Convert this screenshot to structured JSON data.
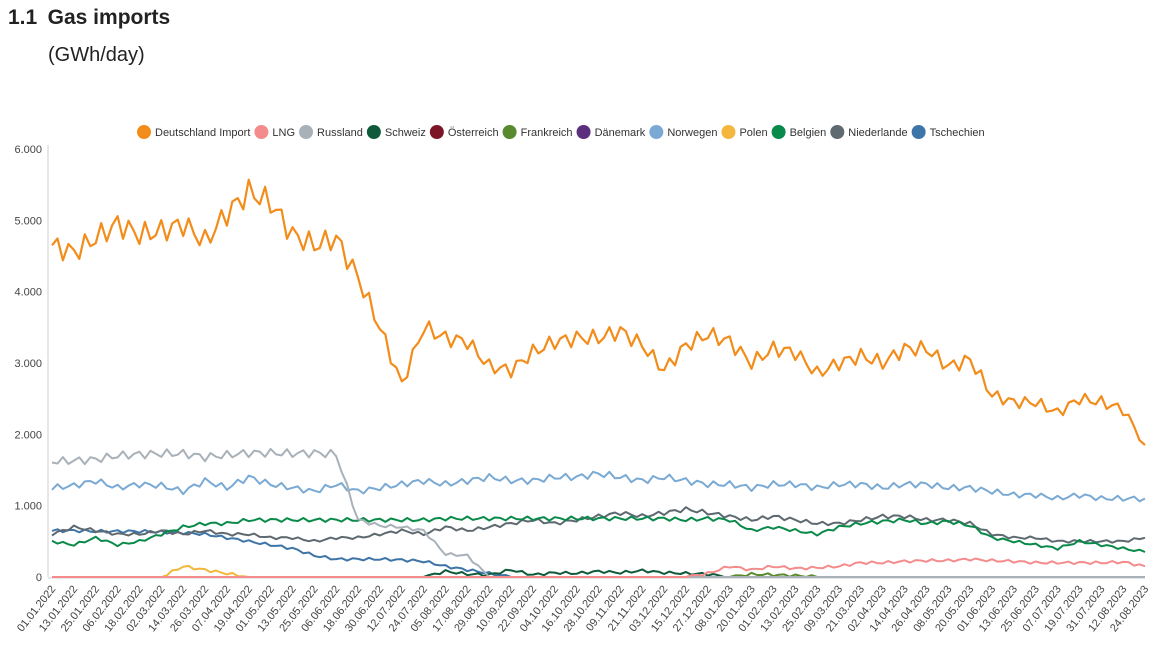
{
  "header": {
    "number": "1.1",
    "title": "Gas imports",
    "unit": "(GWh/day)"
  },
  "chart_data": {
    "type": "line",
    "title": "Gas imports",
    "ylabel": "(GWh/day)",
    "ylim": [
      0,
      6000
    ],
    "y_ticks": [
      "0",
      "1.000",
      "2.000",
      "3.000",
      "4.000",
      "5.000",
      "6.000"
    ],
    "y_tick_values": [
      0,
      1000,
      2000,
      3000,
      4000,
      5000,
      6000
    ],
    "x_tick_labels": [
      "01.01.2022",
      "13.01.2022",
      "25.01.2022",
      "06.02.2022",
      "18.02.2022",
      "02.03.2022",
      "14.03.2022",
      "26.03.2022",
      "07.04.2022",
      "19.04.2022",
      "01.05.2022",
      "13.05.2022",
      "25.05.2022",
      "06.06.2022",
      "18.06.2022",
      "30.06.2022",
      "12.07.2022",
      "24.07.2022",
      "05.08.2022",
      "17.08.2022",
      "29.08.2022",
      "10.09.2022",
      "22.09.2022",
      "04.10.2022",
      "16.10.2022",
      "28.10.2022",
      "09.11.2022",
      "21.11.2022",
      "03.12.2022",
      "15.12.2022",
      "27.12.2022",
      "08.01.2023",
      "20.01.2023",
      "01.02.2023",
      "13.02.2023",
      "25.02.2023",
      "09.03.2023",
      "21.03.2023",
      "02.04.2023",
      "14.04.2023",
      "26.04.2023",
      "08.05.2023",
      "20.05.2023",
      "01.06.2023",
      "13.06.2023",
      "25.06.2023",
      "07.07.2023",
      "19.07.2023",
      "31.07.2023",
      "12.08.2023",
      "24.08.2023"
    ],
    "grid": false,
    "legend_position": "top",
    "x_note": "values given per 12-day x tick, in tick order",
    "series": [
      {
        "name": "Deutschland Import",
        "color": "#f28c1a",
        "values": [
          4650,
          4550,
          4750,
          4950,
          4800,
          4850,
          4950,
          4700,
          5100,
          5400,
          5250,
          4800,
          4650,
          4750,
          4200,
          3500,
          2700,
          3500,
          3350,
          3300,
          2950,
          2900,
          3150,
          3300,
          3350,
          3350,
          3450,
          3250,
          2900,
          3250,
          3400,
          3300,
          3000,
          3200,
          3150,
          2850,
          3000,
          3100,
          3000,
          3200,
          3200,
          2950,
          3050,
          2550,
          2450,
          2450,
          2300,
          2500,
          2450,
          2350,
          1850
        ]
      },
      {
        "name": "LNG",
        "color": "#f48c8c",
        "values": [
          0,
          0,
          0,
          0,
          0,
          0,
          0,
          0,
          0,
          0,
          0,
          0,
          0,
          0,
          0,
          0,
          0,
          0,
          0,
          0,
          0,
          0,
          0,
          0,
          0,
          0,
          0,
          0,
          0,
          0,
          50,
          150,
          100,
          150,
          120,
          130,
          150,
          200,
          200,
          220,
          230,
          230,
          250,
          230,
          220,
          200,
          200,
          200,
          200,
          210,
          150
        ]
      },
      {
        "name": "Russland",
        "color": "#a9b1b8",
        "values": [
          1620,
          1630,
          1650,
          1700,
          1720,
          1730,
          1730,
          1680,
          1710,
          1740,
          1740,
          1730,
          1740,
          1720,
          800,
          720,
          700,
          650,
          320,
          300,
          0,
          0,
          0,
          0,
          0,
          0,
          0,
          0,
          0,
          0,
          0,
          0,
          0,
          0,
          0,
          0,
          0,
          0,
          0,
          0,
          0,
          0,
          0,
          0,
          0,
          0,
          0,
          0,
          0,
          0,
          0
        ]
      },
      {
        "name": "Schweiz",
        "color": "#0e5a3a",
        "values": [
          0,
          0,
          0,
          0,
          0,
          0,
          0,
          0,
          0,
          0,
          0,
          0,
          0,
          0,
          0,
          0,
          0,
          0,
          80,
          40,
          30,
          100,
          30,
          60,
          50,
          80,
          60,
          90,
          60,
          50,
          40,
          0,
          0,
          0,
          0,
          0,
          0,
          0,
          0,
          0,
          0,
          0,
          0,
          0,
          0,
          0,
          0,
          0,
          0,
          0,
          0
        ]
      },
      {
        "name": "Österreich",
        "color": "#7d1528",
        "values": [
          0,
          0,
          0,
          0,
          0,
          0,
          0,
          0,
          0,
          0,
          0,
          0,
          0,
          0,
          0,
          0,
          0,
          0,
          0,
          0,
          0,
          0,
          0,
          0,
          0,
          0,
          0,
          0,
          0,
          0,
          0,
          0,
          0,
          0,
          0,
          0,
          0,
          0,
          0,
          0,
          0,
          0,
          0,
          0,
          0,
          0,
          0,
          0,
          0,
          0,
          0
        ]
      },
      {
        "name": "Frankreich",
        "color": "#5a8a2e",
        "values": [
          0,
          0,
          0,
          0,
          0,
          0,
          0,
          0,
          0,
          0,
          0,
          0,
          0,
          0,
          0,
          0,
          0,
          0,
          0,
          0,
          0,
          0,
          0,
          0,
          0,
          0,
          0,
          0,
          0,
          0,
          0,
          0,
          40,
          30,
          20,
          0,
          0,
          0,
          0,
          0,
          0,
          0,
          0,
          0,
          0,
          0,
          0,
          0,
          0,
          0,
          0
        ]
      },
      {
        "name": "Dänemark",
        "color": "#5c2e7e",
        "values": [
          0,
          0,
          0,
          0,
          0,
          0,
          0,
          0,
          0,
          0,
          0,
          0,
          0,
          0,
          0,
          0,
          0,
          0,
          0,
          0,
          0,
          0,
          0,
          0,
          0,
          0,
          0,
          0,
          0,
          0,
          0,
          0,
          0,
          0,
          0,
          0,
          0,
          0,
          0,
          0,
          0,
          0,
          0,
          0,
          0,
          0,
          0,
          0,
          0,
          0,
          0
        ]
      },
      {
        "name": "Norwegen",
        "color": "#7aaad4",
        "values": [
          1250,
          1280,
          1350,
          1250,
          1300,
          1280,
          1200,
          1350,
          1250,
          1400,
          1300,
          1250,
          1200,
          1300,
          1200,
          1250,
          1300,
          1350,
          1300,
          1350,
          1400,
          1350,
          1350,
          1400,
          1400,
          1450,
          1400,
          1350,
          1400,
          1350,
          1300,
          1300,
          1250,
          1300,
          1300,
          1250,
          1300,
          1300,
          1250,
          1300,
          1300,
          1250,
          1250,
          1200,
          1150,
          1150,
          1100,
          1150,
          1100,
          1100,
          1100
        ]
      },
      {
        "name": "Polen",
        "color": "#f2b73c",
        "values": [
          0,
          0,
          0,
          0,
          0,
          0,
          150,
          100,
          50,
          0,
          0,
          0,
          0,
          0,
          0,
          0,
          0,
          0,
          0,
          0,
          0,
          0,
          0,
          0,
          0,
          0,
          0,
          0,
          0,
          0,
          0,
          0,
          0,
          0,
          0,
          0,
          0,
          0,
          0,
          0,
          0,
          0,
          0,
          0,
          0,
          0,
          0,
          0,
          0,
          0,
          0
        ]
      },
      {
        "name": "Belgien",
        "color": "#0a8a4a",
        "values": [
          500,
          450,
          550,
          450,
          500,
          600,
          700,
          750,
          750,
          800,
          800,
          800,
          800,
          800,
          800,
          800,
          800,
          800,
          820,
          820,
          820,
          820,
          820,
          820,
          820,
          820,
          820,
          820,
          820,
          800,
          820,
          800,
          650,
          700,
          650,
          600,
          700,
          750,
          780,
          800,
          750,
          780,
          720,
          550,
          500,
          450,
          400,
          500,
          450,
          400,
          350
        ]
      },
      {
        "name": "Niederlande",
        "color": "#5e6970",
        "values": [
          600,
          700,
          650,
          600,
          600,
          650,
          600,
          650,
          600,
          600,
          550,
          550,
          500,
          550,
          550,
          600,
          650,
          600,
          700,
          650,
          700,
          750,
          800,
          750,
          800,
          850,
          900,
          850,
          900,
          950,
          900,
          850,
          800,
          850,
          800,
          750,
          750,
          800,
          850,
          850,
          800,
          800,
          750,
          600,
          550,
          550,
          500,
          500,
          500,
          500,
          550
        ]
      },
      {
        "name": "Tschechien",
        "color": "#3e75a8",
        "values": [
          650,
          650,
          640,
          640,
          640,
          630,
          620,
          600,
          550,
          500,
          450,
          400,
          300,
          250,
          250,
          250,
          240,
          220,
          150,
          100,
          50,
          0,
          0,
          0,
          0,
          0,
          0,
          0,
          0,
          0,
          0,
          0,
          0,
          0,
          0,
          0,
          0,
          0,
          0,
          0,
          0,
          0,
          0,
          0,
          0,
          0,
          0,
          0,
          0,
          0,
          0
        ]
      }
    ]
  }
}
